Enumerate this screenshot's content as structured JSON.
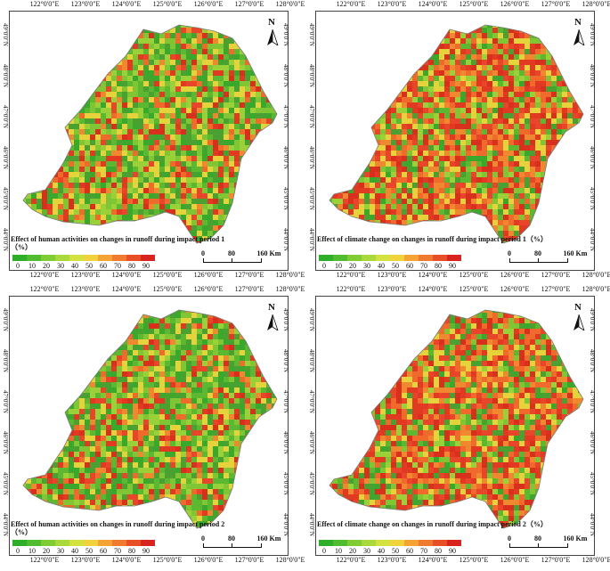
{
  "lon_labels": [
    "122°0'0\"E",
    "123°0'0\"E",
    "124°0'0\"E",
    "125°0'0\"E",
    "126°0'0\"E",
    "127°0'0\"E",
    "128°0'0\"E"
  ],
  "lat_labels": [
    "49°0'0\"N",
    "48°0'0\"N",
    "47°0'0\"N",
    "46°0'0\"N",
    "45°0'0\"N",
    "44°0'0\"N"
  ],
  "north_label": "N",
  "legend_ticks": [
    "0",
    "10",
    "20",
    "30",
    "40",
    "50",
    "60",
    "70",
    "80",
    "90"
  ],
  "legend_colors": [
    "#2fae2a",
    "#4fbd2e",
    "#7fcc34",
    "#a9d83a",
    "#d3e23f",
    "#f2d23b",
    "#f5a335",
    "#f07a2d",
    "#e84f26",
    "#d9231e"
  ],
  "scale": {
    "zero": "0",
    "mid": "80",
    "end": "160 Km"
  },
  "panels": [
    {
      "legend_title": "Effect of human activities on changes in runoff during impact period 1（%）",
      "dominant": "green"
    },
    {
      "legend_title": "Effect of climate change on changes in runoff during impact period 1（%）",
      "dominant": "red"
    },
    {
      "legend_title": "Effect of human activities on changes in runoff during impact period 2（%）",
      "dominant": "green"
    },
    {
      "legend_title": "Effect of climate change on changes in runoff during impact period 2（%）",
      "dominant": "red"
    }
  ]
}
